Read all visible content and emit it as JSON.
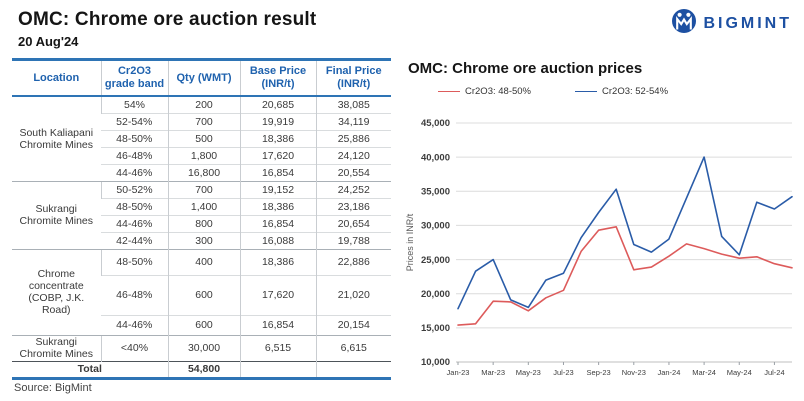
{
  "header": {
    "title": "OMC: Chrome ore auction result",
    "date": "20 Aug'24"
  },
  "logo": {
    "text": "BIGMINT",
    "color": "#1D50A2"
  },
  "table": {
    "columns": [
      "Location",
      "Cr2O3 grade band",
      "Qty (WMT)",
      "Base Price (INR/t)",
      "Final Price (INR/t)"
    ],
    "groups": [
      {
        "location": "South Kaliapani Chromite Mines",
        "rows": [
          [
            "54%",
            "200",
            "20,685",
            "38,085"
          ],
          [
            "52-54%",
            "700",
            "19,919",
            "34,119"
          ],
          [
            "48-50%",
            "500",
            "18,386",
            "25,886"
          ],
          [
            "46-48%",
            "1,800",
            "17,620",
            "24,120"
          ],
          [
            "44-46%",
            "16,800",
            "16,854",
            "20,554"
          ]
        ]
      },
      {
        "location": "Sukrangi Chromite Mines",
        "rows": [
          [
            "50-52%",
            "700",
            "19,152",
            "24,252"
          ],
          [
            "48-50%",
            "1,400",
            "18,386",
            "23,186"
          ],
          [
            "44-46%",
            "800",
            "16,854",
            "20,654"
          ],
          [
            "42-44%",
            "300",
            "16,088",
            "19,788"
          ]
        ]
      },
      {
        "location": "Chrome concentrate (COBP, J.K. Road)",
        "rows": [
          [
            "48-50%",
            "400",
            "18,386",
            "22,886"
          ],
          [
            "46-48%",
            "600",
            "17,620",
            "21,020"
          ],
          [
            "44-46%",
            "600",
            "16,854",
            "20,154"
          ]
        ]
      },
      {
        "location": "Sukrangi Chromite Mines",
        "rows": [
          [
            "<40%",
            "30,000",
            "6,515",
            "6,615"
          ]
        ]
      }
    ],
    "total": {
      "label": "Total",
      "qty": "54,800",
      "base": "",
      "final": ""
    }
  },
  "source": "Source: BigMint",
  "chart_data": {
    "type": "line",
    "title": "OMC: Chrome ore auction prices",
    "ylabel": "Prices in INR/t",
    "ylim": [
      10000,
      45000
    ],
    "ytick_step": 5000,
    "grid": true,
    "legend_position": "top",
    "x": [
      "Jan-23",
      "Feb-23",
      "Mar-23",
      "Apr-23",
      "May-23",
      "Jun-23",
      "Jul-23",
      "Aug-23",
      "Sep-23",
      "Oct-23",
      "Nov-23",
      "Dec-23",
      "Jan-24",
      "Feb-24",
      "Mar-24",
      "Apr-24",
      "May-24",
      "Jun-24",
      "Jul-24",
      "Aug-24"
    ],
    "xtick_labels": [
      "Jan-23",
      "Mar-23",
      "May-23",
      "Jul-23",
      "Sep-23",
      "Nov-23",
      "Jan-24",
      "Mar-24",
      "May-24",
      "Jul-24"
    ],
    "series": [
      {
        "name": "Cr2O3: 48-50%",
        "color": "#DD5B5B",
        "values": [
          15400,
          15600,
          18900,
          18800,
          17500,
          19400,
          20500,
          26200,
          29300,
          29800,
          23500,
          23900,
          25500,
          27300,
          26600,
          25800,
          25200,
          25400,
          24400,
          23800
        ]
      },
      {
        "name": "Cr2O3: 52-54%",
        "color": "#2A5CA8",
        "values": [
          17800,
          23300,
          25000,
          19100,
          18000,
          22000,
          23000,
          28200,
          31900,
          35300,
          27200,
          26100,
          28000,
          34000,
          40000,
          28400,
          25700,
          33400,
          32400,
          34200
        ]
      }
    ]
  }
}
